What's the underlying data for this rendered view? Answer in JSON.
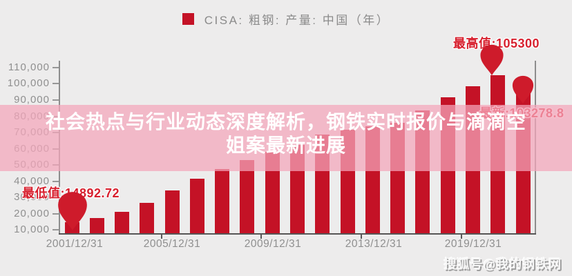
{
  "legend": {
    "label": "CISA: 粗钢: 产量: 中国（年）",
    "marker_icon": "red-square-legend-marker"
  },
  "headline": {
    "line1": "社会热点与行业动态深度解析，钢铁实时报价与滴滴空",
    "line2": "姐案最新进展"
  },
  "annotations": {
    "max": "最高值:105300",
    "latest": "最新:103278.8",
    "min": "最低值:14892.72"
  },
  "watermark": "搜狐号@我的钢铁网",
  "colors": {
    "background": "#edecec",
    "bar": "#c41226",
    "pin": "#ce1b2b",
    "band": "rgba(244,166,187,0.73)",
    "annotation_red": "#d7202e",
    "axis_gray": "#8d8d8d",
    "label_gray": "#8f8f8f",
    "headline_white": "#ffffff"
  },
  "chart_data": {
    "type": "bar",
    "title": "CISA: 粗钢: 产量: 中国（年）",
    "legend_position": "top-center",
    "grid": false,
    "bar_count": 19,
    "values": [
      14892.72,
      17300,
      21200,
      26500,
      34200,
      41300,
      47600,
      53100,
      58000,
      62500,
      68600,
      71800,
      74000,
      76000,
      83500,
      91500,
      98600,
      105300,
      103278.8
    ],
    "values_note": "first, max and latest bars are labeled on chart; intermediate values estimated from bar heights",
    "min_value": 14892.72,
    "max_value": 105300,
    "latest_value": 103278.8,
    "x_tick_labels": [
      "2001/12/31",
      "2005/12/31",
      "2009/12/31",
      "2013/12/31",
      "2019/12/31"
    ],
    "y_tick_labels": [
      "110,000",
      "100,000",
      "90,000",
      "80,000",
      "70,000",
      "60,000",
      "50,000",
      "40,000",
      "30,000",
      "20,000",
      "10,000"
    ],
    "y_tick_values": [
      110000,
      100000,
      90000,
      80000,
      70000,
      60000,
      50000,
      40000,
      30000,
      20000,
      10000
    ],
    "ylim": [
      7250,
      113400
    ]
  }
}
